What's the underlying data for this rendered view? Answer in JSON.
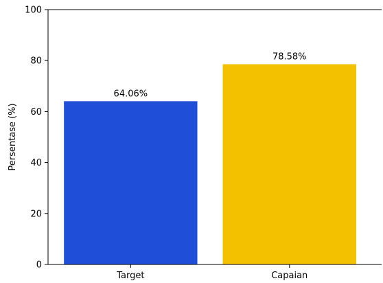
{
  "chart_data": {
    "type": "bar",
    "categories": [
      "Target",
      "Capaian"
    ],
    "values": [
      64.06,
      78.58
    ],
    "data_labels": [
      "64.06%",
      "78.58%"
    ],
    "colors": [
      "#1f4fd6",
      "#f2c200"
    ],
    "title": "",
    "xlabel": "",
    "ylabel": "Persentase (%)",
    "ylim": [
      0,
      100
    ],
    "yticks": [
      0,
      20,
      40,
      60,
      80,
      100
    ],
    "grid": false,
    "legend": "none"
  }
}
